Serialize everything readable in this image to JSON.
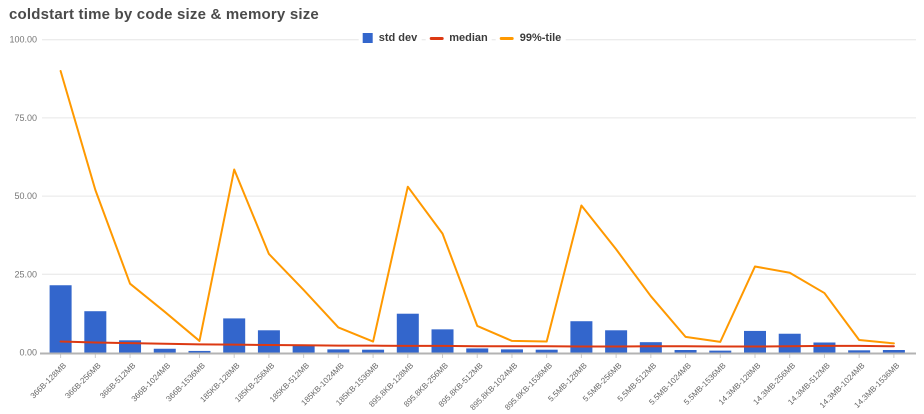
{
  "chart_data": {
    "type": "combo-bar-line",
    "title": "coldstart time by code size & memory size",
    "xlabel": "",
    "ylabel": "",
    "ylim": [
      0,
      100
    ],
    "grid": "horizontal",
    "legend_position": "top-center",
    "y_ticks": [
      {
        "value": 0,
        "label": "0.00"
      },
      {
        "value": 25,
        "label": "25.00"
      },
      {
        "value": 50,
        "label": "50.00"
      },
      {
        "value": 75,
        "label": "75.00"
      },
      {
        "value": 100,
        "label": "100.00"
      }
    ],
    "categories": [
      "366B-128MB",
      "366B-256MB",
      "366B-512MB",
      "366B-1024MB",
      "366B-1536MB",
      "185KB-128MB",
      "185KB-256MB",
      "185KB-512MB",
      "185KB-1024MB",
      "185KB-1536MB",
      "895.8KB-128MB",
      "895.8KB-256MB",
      "895.8KB-512MB",
      "895.8KB-1024MB",
      "895.8KB-1536MB",
      "5.5MB-128MB",
      "5.5MB-256MB",
      "5.5MB-512MB",
      "5.5MB-1024MB",
      "5.5MB-1536MB",
      "14.3MB-128MB",
      "14.3MB-256MB",
      "14.3MB-512MB",
      "14.3MB-1024MB",
      "14.3MB-1536MB"
    ],
    "series": [
      {
        "name": "std dev",
        "type": "bar",
        "color": "#3366cc",
        "values": [
          21.5,
          13.2,
          3.9,
          1.2,
          0.5,
          10.9,
          7.1,
          2.1,
          1.0,
          0.9,
          12.4,
          7.4,
          1.3,
          1.0,
          0.9,
          10.0,
          7.1,
          3.3,
          0.8,
          0.6,
          6.9,
          6.0,
          3.2,
          0.7,
          0.8
        ]
      },
      {
        "name": "median",
        "type": "line",
        "color": "#dc3912",
        "values": [
          3.5,
          3.2,
          3.0,
          2.8,
          2.6,
          2.5,
          2.4,
          2.3,
          2.2,
          2.2,
          2.1,
          2.1,
          2.0,
          2.0,
          2.0,
          1.9,
          1.9,
          2.0,
          2.0,
          1.9,
          1.9,
          2.0,
          2.1,
          2.1,
          2.0
        ]
      },
      {
        "name": "99%-tile",
        "type": "line",
        "color": "#ff9900",
        "values": [
          90,
          52,
          22,
          13,
          3.7,
          58.5,
          31.5,
          20,
          8,
          3.5,
          53,
          38,
          8.5,
          3.7,
          3.5,
          47,
          33,
          18,
          5,
          3.4,
          27.5,
          25.5,
          19,
          4,
          2.9
        ]
      }
    ],
    "colors": {
      "background": "#ffffff",
      "gridline": "#e6e6e6",
      "baseline": "#b3b3b3",
      "tick_mark": "#cccccc",
      "y_axis_text": "#757575",
      "x_axis_text": "#666666",
      "title_text": "#4a4a4a",
      "legend_text": "#3c3c3c"
    }
  }
}
